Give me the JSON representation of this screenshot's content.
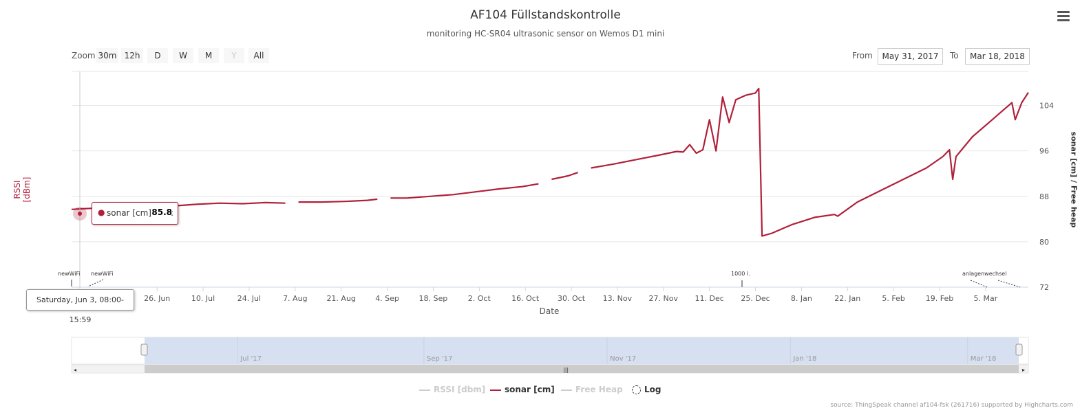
{
  "header": {
    "title": "AF104 Füllstandskontrolle",
    "subtitle": "monitoring HC-SR04 ultrasonic sensor on Wemos D1 mini"
  },
  "menu": {
    "icon": "hamburger-menu-icon"
  },
  "range_selector": {
    "zoom_label": "Zoom",
    "buttons": [
      "30m",
      "12h",
      "D",
      "W",
      "M",
      "Y",
      "All"
    ],
    "disabled_button": "Y",
    "from_label": "From",
    "from_value": "May 31, 2017",
    "to_label": "To",
    "to_value": "Mar 18, 2018"
  },
  "axes": {
    "left_label": "RSSI [dBm]",
    "right_label": "sonar [cm] / Free heap",
    "x_label": "Date"
  },
  "tooltip": {
    "series": "sonar [cm]",
    "value": "85.8",
    "date": "Saturday, Jun 3, 08:00-15:59"
  },
  "flags": {
    "a": "newWiFi",
    "b": "newWiFi",
    "c": "1000 l.",
    "d": "anlagenwechsel"
  },
  "navigator": {
    "labels": [
      "Jul '17",
      "Sep '17",
      "Nov '17",
      "Jan '18",
      "Mar '18"
    ]
  },
  "legend": [
    {
      "label": "RSSI [dbm]",
      "color": "#cccccc",
      "active": false
    },
    {
      "label": "sonar [cm]",
      "color": "#b0203a",
      "active": true
    },
    {
      "label": "Free Heap",
      "color": "#cccccc",
      "active": false
    },
    {
      "label": "Log",
      "color": "#333333",
      "active": true
    }
  ],
  "credit": "source: ThingSpeak channel af104-fsk (261716) supported by Highcharts.com",
  "colors": {
    "sonar": "#b0203a",
    "grid": "#e6e6e6",
    "navigator_fill": "#d6e0f0"
  },
  "chart_data": {
    "type": "line",
    "title": "AF104 Füllstandskontrolle",
    "subtitle": "monitoring HC-SR04 ultrasonic sensor on Wemos D1 mini",
    "xlabel": "Date",
    "ylabel": "sonar [cm] / Free heap",
    "ylabel_left": "RSSI [dBm]",
    "xlim": [
      "2017-05-31",
      "2018-03-18"
    ],
    "ylim": [
      72,
      110
    ],
    "y_ticks": [
      72,
      80,
      88,
      96,
      104
    ],
    "x_ticks": [
      {
        "label": "26. Jun",
        "date": "2017-06-26"
      },
      {
        "label": "10. Jul",
        "date": "2017-07-10"
      },
      {
        "label": "24. Jul",
        "date": "2017-07-24"
      },
      {
        "label": "7. Aug",
        "date": "2017-08-07"
      },
      {
        "label": "21. Aug",
        "date": "2017-08-21"
      },
      {
        "label": "4. Sep",
        "date": "2017-09-04"
      },
      {
        "label": "18. Sep",
        "date": "2017-09-18"
      },
      {
        "label": "2. Oct",
        "date": "2017-10-02"
      },
      {
        "label": "16. Oct",
        "date": "2017-10-16"
      },
      {
        "label": "30. Oct",
        "date": "2017-10-30"
      },
      {
        "label": "13. Nov",
        "date": "2017-11-13"
      },
      {
        "label": "27. Nov",
        "date": "2017-11-27"
      },
      {
        "label": "11. Dec",
        "date": "2017-12-11"
      },
      {
        "label": "25. Dec",
        "date": "2017-12-25"
      },
      {
        "label": "8. Jan",
        "date": "2018-01-08"
      },
      {
        "label": "22. Jan",
        "date": "2018-01-22"
      },
      {
        "label": "5. Feb",
        "date": "2018-02-05"
      },
      {
        "label": "19. Feb",
        "date": "2018-02-19"
      },
      {
        "label": "5. Mar",
        "date": "2018-03-05"
      }
    ],
    "grid": true,
    "legend_position": "bottom",
    "series": [
      {
        "name": "sonar [cm]",
        "color": "#b0203a",
        "segments": [
          [
            [
              "2017-05-31",
              85.7
            ],
            [
              "2017-06-03",
              85.8
            ],
            [
              "2017-06-10",
              86.0
            ],
            [
              "2017-06-17",
              86.1
            ],
            [
              "2017-06-24",
              86.2
            ],
            [
              "2017-07-01",
              86.3
            ],
            [
              "2017-07-08",
              86.6
            ],
            [
              "2017-07-15",
              86.8
            ],
            [
              "2017-07-22",
              86.7
            ],
            [
              "2017-07-29",
              86.9
            ],
            [
              "2017-08-04",
              86.8
            ]
          ],
          [
            [
              "2017-08-08",
              87.0
            ],
            [
              "2017-08-15",
              87.0
            ],
            [
              "2017-08-22",
              87.1
            ],
            [
              "2017-08-29",
              87.3
            ],
            [
              "2017-09-01",
              87.5
            ]
          ],
          [
            [
              "2017-09-05",
              87.7
            ],
            [
              "2017-09-10",
              87.7
            ],
            [
              "2017-09-17",
              88.0
            ],
            [
              "2017-09-24",
              88.3
            ],
            [
              "2017-10-01",
              88.8
            ],
            [
              "2017-10-08",
              89.3
            ],
            [
              "2017-10-15",
              89.7
            ],
            [
              "2017-10-20",
              90.2
            ]
          ],
          [
            [
              "2017-10-24",
              91.0
            ],
            [
              "2017-10-29",
              91.6
            ],
            [
              "2017-11-01",
              92.2
            ]
          ],
          [
            [
              "2017-11-05",
              93.0
            ],
            [
              "2017-11-12",
              93.7
            ],
            [
              "2017-11-19",
              94.5
            ],
            [
              "2017-11-26",
              95.3
            ],
            [
              "2017-12-01",
              95.9
            ],
            [
              "2017-12-03",
              95.8
            ],
            [
              "2017-12-05",
              97.1
            ],
            [
              "2017-12-07",
              95.6
            ],
            [
              "2017-12-09",
              96.2
            ],
            [
              "2017-12-11",
              101.5
            ],
            [
              "2017-12-13",
              96.0
            ],
            [
              "2017-12-15",
              105.5
            ],
            [
              "2017-12-17",
              101.0
            ],
            [
              "2017-12-19",
              105.0
            ],
            [
              "2017-12-22",
              105.8
            ],
            [
              "2017-12-25",
              106.2
            ],
            [
              "2017-12-26",
              107.0
            ],
            [
              "2017-12-27",
              81.0
            ],
            [
              "2017-12-30",
              81.5
            ],
            [
              "2018-01-05",
              83.0
            ],
            [
              "2018-01-12",
              84.3
            ],
            [
              "2018-01-18",
              84.8
            ],
            [
              "2018-01-19",
              84.5
            ],
            [
              "2018-01-25",
              87.0
            ],
            [
              "2018-02-01",
              89.0
            ],
            [
              "2018-02-08",
              91.0
            ],
            [
              "2018-02-15",
              93.0
            ],
            [
              "2018-02-20",
              95.0
            ],
            [
              "2018-02-22",
              96.2
            ],
            [
              "2018-02-23",
              91.0
            ],
            [
              "2018-02-24",
              95.0
            ],
            [
              "2018-03-01",
              98.5
            ],
            [
              "2018-03-06",
              101.0
            ],
            [
              "2018-03-10",
              103.0
            ],
            [
              "2018-03-13",
              104.5
            ],
            [
              "2018-03-14",
              101.5
            ],
            [
              "2018-03-16",
              104.5
            ],
            [
              "2018-03-18",
              106.3
            ]
          ]
        ]
      }
    ]
  }
}
